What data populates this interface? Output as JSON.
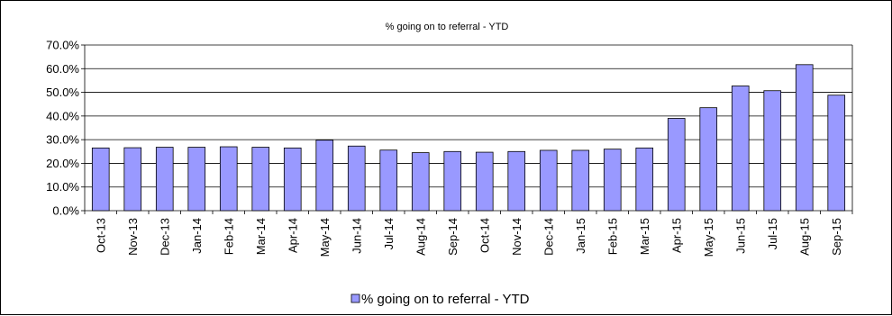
{
  "chart_data": {
    "type": "bar",
    "title": "% going on to referral - YTD",
    "xlabel": "",
    "ylabel": "",
    "ylim": [
      0,
      0.7
    ],
    "yticks": [
      "0.0%",
      "10.0%",
      "20.0%",
      "30.0%",
      "40.0%",
      "50.0%",
      "60.0%",
      "70.0%"
    ],
    "grid": "horizontal",
    "legend": "bottom",
    "categories": [
      "Oct-13",
      "Nov-13",
      "Dec-13",
      "Jan-14",
      "Feb-14",
      "Mar-14",
      "Apr-14",
      "May-14",
      "Jun-14",
      "Jul-14",
      "Aug-14",
      "Sep-14",
      "Oct-14",
      "Nov-14",
      "Dec-14",
      "Jan-15",
      "Feb-15",
      "Mar-15",
      "Apr-15",
      "May-15",
      "Jun-15",
      "Jul-15",
      "Aug-15",
      "Sep-15"
    ],
    "series": [
      {
        "name": "% going on to referral - YTD",
        "color": "#9999ff",
        "values": [
          0.265,
          0.266,
          0.268,
          0.268,
          0.27,
          0.268,
          0.265,
          0.298,
          0.273,
          0.256,
          0.245,
          0.25,
          0.247,
          0.25,
          0.255,
          0.255,
          0.26,
          0.265,
          0.39,
          0.435,
          0.527,
          0.507,
          0.617,
          0.488
        ]
      }
    ]
  }
}
